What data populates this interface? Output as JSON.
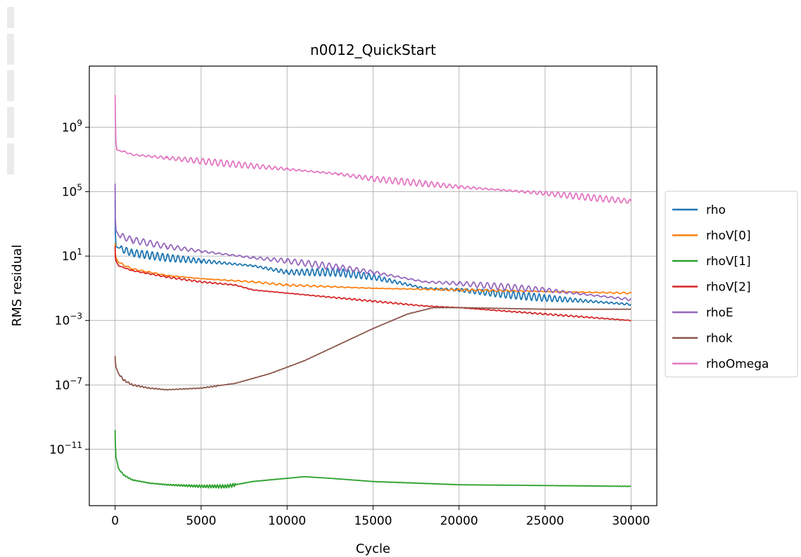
{
  "chart_data": {
    "type": "line",
    "title": "n0012_QuickStart",
    "xlabel": "Cycle",
    "ylabel": "RMS residual",
    "yscale": "log",
    "xlim": [
      -1500,
      31500
    ],
    "ylim_log10": [
      -14.5,
      12.8
    ],
    "xticks": [
      {
        "value": 0,
        "label": "0"
      },
      {
        "value": 5000,
        "label": "5000"
      },
      {
        "value": 10000,
        "label": "10000"
      },
      {
        "value": 15000,
        "label": "15000"
      },
      {
        "value": 20000,
        "label": "20000"
      },
      {
        "value": 25000,
        "label": "25000"
      },
      {
        "value": 30000,
        "label": "30000"
      }
    ],
    "yticks": [
      {
        "exp": 9,
        "base": "10",
        "power": "9"
      },
      {
        "exp": 5,
        "base": "10",
        "power": "5"
      },
      {
        "exp": 1,
        "base": "10",
        "power": "1"
      },
      {
        "exp": -3,
        "base": "10",
        "power": "−3"
      },
      {
        "exp": -7,
        "base": "10",
        "power": "−7"
      },
      {
        "exp": -11,
        "base": "10",
        "power": "−11"
      }
    ],
    "grid": true,
    "legend_position": "outside-right",
    "series": [
      {
        "name": "rho",
        "color": "#1f77b4",
        "noise": 0.25,
        "period": 300,
        "x": [
          0,
          10,
          50,
          200,
          1000,
          3000,
          5000,
          8000,
          10000,
          13000,
          15000,
          18000,
          20000,
          25000,
          30000
        ],
        "log10y": [
          4.5,
          2.6,
          1.6,
          1.5,
          1.2,
          0.9,
          0.7,
          0.4,
          0.0,
          0.0,
          -0.3,
          -1.0,
          -1.1,
          -1.6,
          -2.0
        ]
      },
      {
        "name": "rhoV[0]",
        "color": "#ff7f0e",
        "noise": 0.06,
        "period": 400,
        "x": [
          0,
          10,
          50,
          200,
          1000,
          3000,
          5000,
          8000,
          10000,
          15000,
          20000,
          25000,
          30000
        ],
        "log10y": [
          1.8,
          1.2,
          0.9,
          0.6,
          0.2,
          -0.2,
          -0.4,
          -0.6,
          -0.8,
          -1.0,
          -1.1,
          -1.2,
          -1.3
        ]
      },
      {
        "name": "rhoV[1]",
        "color": "#2ca02c",
        "noise": 0.12,
        "period": 150,
        "noise_end": 7000,
        "x": [
          0,
          10,
          50,
          200,
          500,
          1000,
          2000,
          3000,
          5000,
          6500,
          8000,
          10000,
          11000,
          12500,
          15000,
          20000,
          25000,
          30000
        ],
        "log10y": [
          -9.8,
          -10.5,
          -11.5,
          -12.2,
          -12.6,
          -12.9,
          -13.1,
          -13.2,
          -13.3,
          -13.3,
          -13.0,
          -12.8,
          -12.7,
          -12.8,
          -13.0,
          -13.2,
          -13.25,
          -13.3
        ]
      },
      {
        "name": "rhoV[2]",
        "color": "#d62728",
        "noise": 0.05,
        "period": 300,
        "x": [
          0,
          10,
          50,
          200,
          1000,
          3000,
          5000,
          7000,
          8000,
          10000,
          12000,
          15000,
          18000,
          20000,
          25000,
          30000
        ],
        "log10y": [
          1.6,
          1.0,
          0.7,
          0.4,
          0.1,
          -0.3,
          -0.6,
          -0.8,
          -1.1,
          -1.3,
          -1.5,
          -1.8,
          -2.1,
          -2.2,
          -2.6,
          -3.0
        ]
      },
      {
        "name": "rhoE",
        "color": "#9467bd",
        "noise": 0.2,
        "period": 400,
        "x": [
          0,
          10,
          50,
          200,
          1000,
          3000,
          5000,
          8000,
          10000,
          13000,
          15000,
          18000,
          20000,
          25000,
          30000
        ],
        "log10y": [
          5.5,
          3.4,
          2.6,
          2.3,
          2.0,
          1.6,
          1.3,
          0.9,
          0.7,
          0.3,
          0.0,
          -0.6,
          -0.7,
          -1.1,
          -1.7
        ]
      },
      {
        "name": "rhok",
        "color": "#8c564b",
        "noise": 0.08,
        "period": 200,
        "noise_end": 6000,
        "x": [
          0,
          10,
          50,
          200,
          500,
          1000,
          2000,
          3000,
          5000,
          7000,
          9000,
          11000,
          13000,
          15000,
          17000,
          18500,
          20000,
          25000,
          30000
        ],
        "log10y": [
          -5.2,
          -5.5,
          -5.9,
          -6.3,
          -6.7,
          -7.0,
          -7.2,
          -7.3,
          -7.2,
          -6.9,
          -6.3,
          -5.5,
          -4.5,
          -3.5,
          -2.6,
          -2.2,
          -2.2,
          -2.3,
          -2.3
        ]
      },
      {
        "name": "rhoOmega",
        "color": "#e377c2",
        "noise": 0.2,
        "period": 350,
        "x": [
          0,
          10,
          40,
          100,
          500,
          1000,
          3000,
          5000,
          8000,
          10000,
          13000,
          15000,
          18000,
          20000,
          25000,
          30000
        ],
        "log10y": [
          11.0,
          10.0,
          8.2,
          7.6,
          7.5,
          7.3,
          7.1,
          6.9,
          6.6,
          6.4,
          6.1,
          5.8,
          5.5,
          5.3,
          4.9,
          4.4
        ]
      }
    ]
  }
}
